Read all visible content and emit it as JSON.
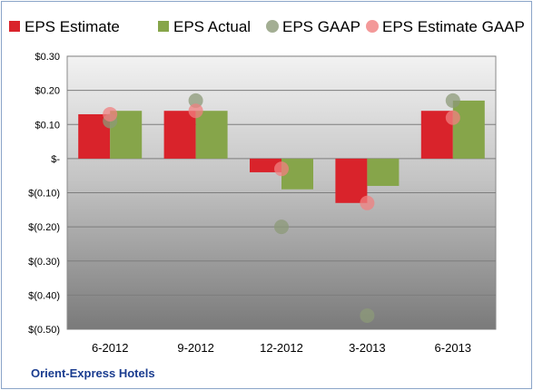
{
  "company_label": "Orient-Express Hotels",
  "colors": {
    "estimate": "#d9232b",
    "actual": "#86a54a",
    "gaap": "#8c9a78",
    "estimate_gaap": "#f08080",
    "company_text": "#1a3c8f"
  },
  "chart_data": {
    "type": "bar",
    "title": "",
    "xlabel": "",
    "ylabel": "",
    "categories": [
      "6-2012",
      "9-2012",
      "12-2012",
      "3-2013",
      "6-2013"
    ],
    "ylim": [
      -0.5,
      0.3
    ],
    "yticks": [
      0.3,
      0.2,
      0.1,
      0.0,
      -0.1,
      -0.2,
      -0.3,
      -0.4,
      -0.5
    ],
    "ytick_labels": [
      "$0.30",
      "$0.20",
      "$0.10",
      "$-",
      "$(0.10)",
      "$(0.20)",
      "$(0.30)",
      "$(0.40)",
      "$(0.50)"
    ],
    "grid": true,
    "legend_position": "top",
    "series": [
      {
        "name": "EPS Estimate",
        "kind": "bar",
        "values": [
          0.13,
          0.14,
          -0.04,
          -0.13,
          0.14
        ]
      },
      {
        "name": "EPS Actual",
        "kind": "bar",
        "values": [
          0.14,
          0.14,
          -0.09,
          -0.08,
          0.17
        ]
      },
      {
        "name": "EPS GAAP",
        "kind": "point",
        "values": [
          0.11,
          0.17,
          -0.2,
          -0.46,
          0.17
        ]
      },
      {
        "name": "EPS Estimate GAAP",
        "kind": "point",
        "values": [
          0.13,
          0.14,
          -0.03,
          -0.13,
          0.12
        ]
      }
    ]
  }
}
